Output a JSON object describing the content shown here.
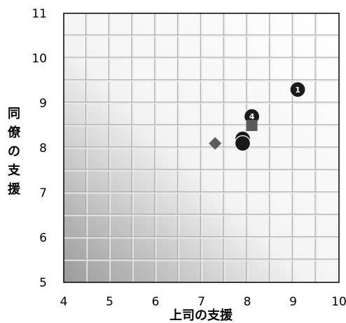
{
  "chart_data": {
    "type": "scatter",
    "title": "",
    "xlabel": "上司の支援",
    "ylabel": "同僚の支援",
    "xlim": [
      4,
      10
    ],
    "ylim": [
      5,
      11
    ],
    "x_ticks": [
      "4",
      "5",
      "6",
      "7",
      "8",
      "9",
      "10"
    ],
    "y_ticks": [
      "5",
      "6",
      "7",
      "8",
      "9",
      "10",
      "11"
    ],
    "grid": true,
    "points": [
      {
        "label": "1",
        "shape": "circle",
        "x": 9.1,
        "y": 9.3,
        "color": "#1a1a1a"
      },
      {
        "label": "4",
        "shape": "circle",
        "x": 8.1,
        "y": 8.7,
        "color": "#1a1a1a"
      },
      {
        "label": "",
        "shape": "square",
        "x": 8.1,
        "y": 8.5,
        "color": "#5a5a5a"
      },
      {
        "label": "3",
        "shape": "circle",
        "x": 7.9,
        "y": 8.2,
        "color": "#1a1a1a"
      },
      {
        "label": "",
        "shape": "circle",
        "x": 7.9,
        "y": 8.1,
        "color": "#1a1a1a"
      },
      {
        "label": "",
        "shape": "diamond",
        "x": 7.3,
        "y": 8.1,
        "color": "#5a5a5a"
      }
    ]
  }
}
